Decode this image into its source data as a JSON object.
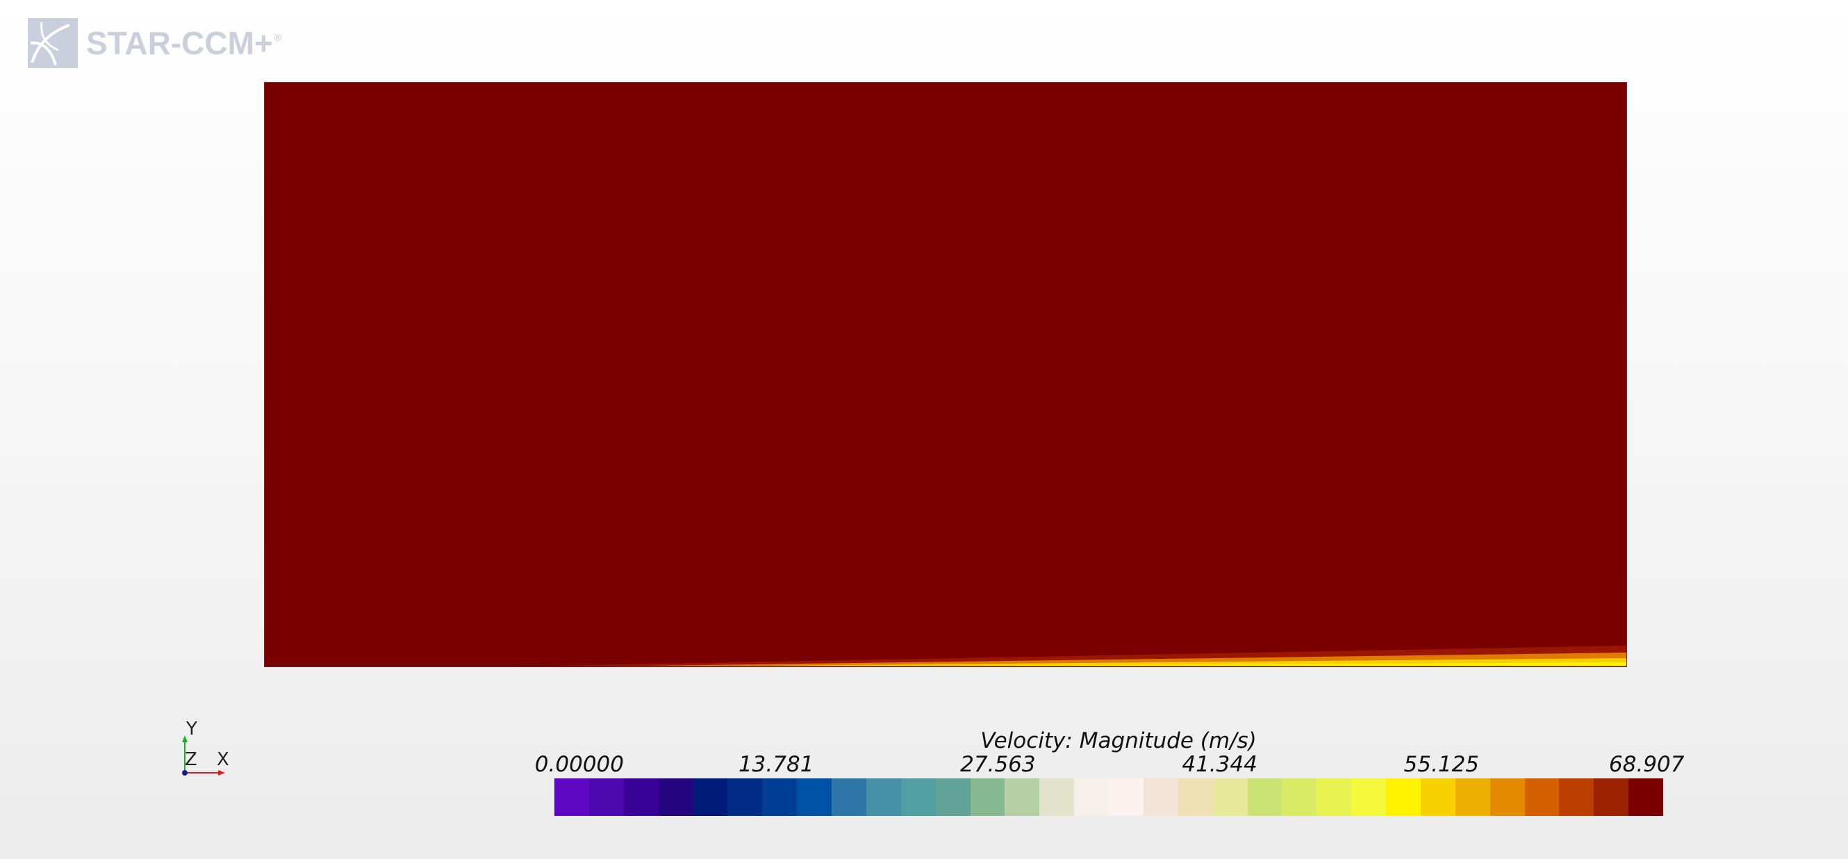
{
  "logo": {
    "text": "STAR-CCM+",
    "reg_mark": "®",
    "icon": "star-ccm-logo-icon",
    "color": "#c9cfdc"
  },
  "scene": {
    "field_color": "#7a0000",
    "boundary_layer_colors": [
      "#a01a00",
      "#e07a00",
      "#f7d000",
      "#fff200"
    ],
    "description_icon": "velocity-contour-plot"
  },
  "triad": {
    "y_label": "Y",
    "z_label": "Z",
    "x_label": "X",
    "y_color": "#1fae1f",
    "x_color": "#d42020",
    "z_color": "#1a1a8a"
  },
  "legend": {
    "title": "Velocity: Magnitude (m/s)",
    "ticks": [
      {
        "label": "0.00000",
        "value": 0.0
      },
      {
        "label": "13.781",
        "value": 13.781
      },
      {
        "label": "27.563",
        "value": 27.563
      },
      {
        "label": "41.344",
        "value": 41.344
      },
      {
        "label": "55.125",
        "value": 55.125
      },
      {
        "label": "68.907",
        "value": 68.907
      }
    ],
    "min": 0.0,
    "max": 68.907,
    "colors": [
      "#5e07c2",
      "#4c07ae",
      "#3a0398",
      "#260680",
      "#021a78",
      "#002c86",
      "#003e95",
      "#0052a6",
      "#2f76a8",
      "#4590a6",
      "#519fa3",
      "#61a397",
      "#86b98f",
      "#b5cfa4",
      "#e3e2cc",
      "#f6efea",
      "#fcf1ee",
      "#f5e3d6",
      "#efe0b6",
      "#e6e89a",
      "#cae274",
      "#d8ea66",
      "#e6f251",
      "#f4f93b",
      "#fff200",
      "#f8d200",
      "#eeb000",
      "#e38a00",
      "#d35f00",
      "#bb4000",
      "#9b2200",
      "#7a0000"
    ]
  }
}
